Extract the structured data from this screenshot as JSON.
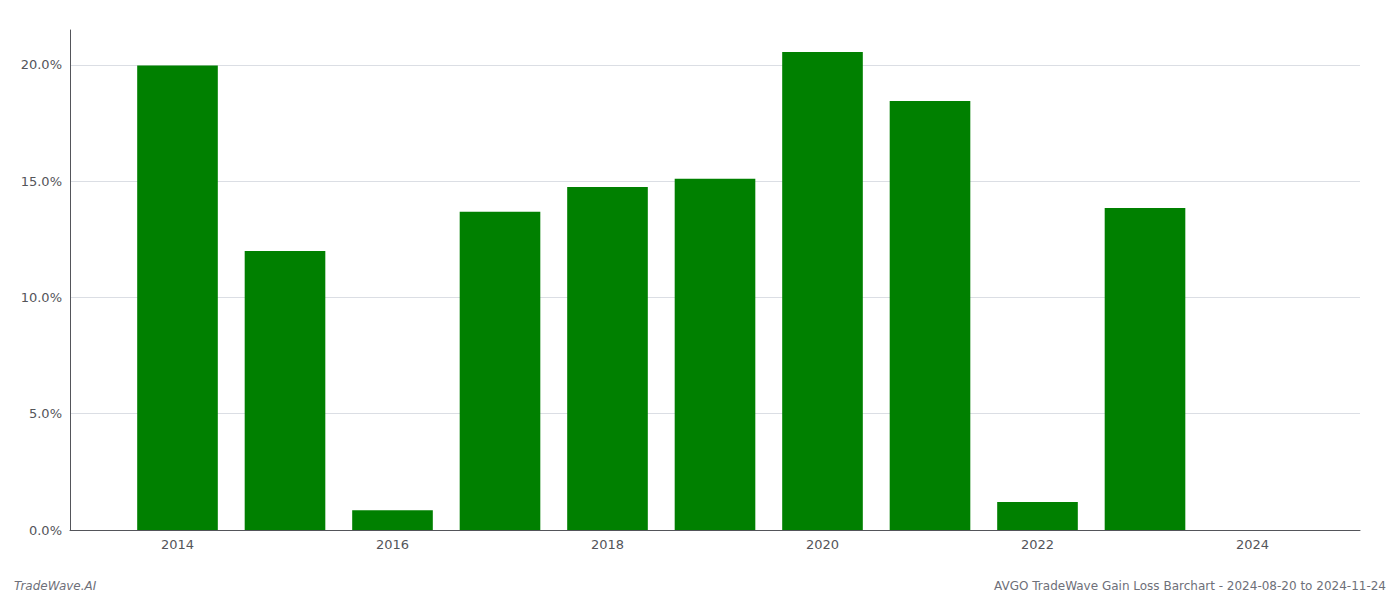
{
  "chart_data": {
    "type": "bar",
    "x": [
      2014,
      2015,
      2016,
      2017,
      2018,
      2019,
      2020,
      2021,
      2022,
      2023
    ],
    "values": [
      0.1997,
      0.12,
      0.0085,
      0.1368,
      0.1475,
      0.151,
      0.2055,
      0.1845,
      0.012,
      0.1385
    ],
    "color": "#008000",
    "xlim": [
      2013.0,
      2025.0
    ],
    "xticks": [
      2014,
      2016,
      2018,
      2020,
      2022,
      2024
    ],
    "ylim": [
      0.0,
      0.215
    ],
    "yticks": [
      {
        "value": 0.0,
        "label": "0.0%"
      },
      {
        "value": 0.05,
        "label": "5.0%"
      },
      {
        "value": 0.1,
        "label": "10.0%"
      },
      {
        "value": 0.15,
        "label": "15.0%"
      },
      {
        "value": 0.2,
        "label": "20.0%"
      }
    ],
    "grid": true,
    "annotations": [
      "TradeWave.AI",
      "AVGO TradeWave Gain Loss Barchart - 2024-08-20 to 2024-11-24"
    ]
  }
}
